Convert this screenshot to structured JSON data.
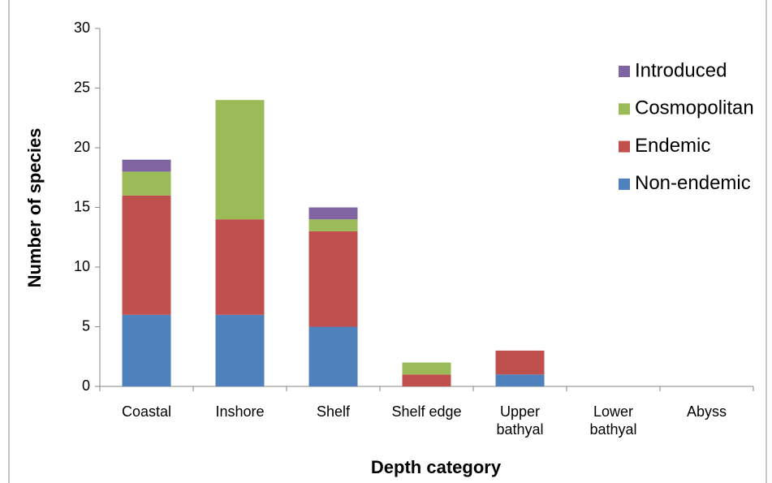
{
  "chart_data": {
    "type": "stacked_bar",
    "categories": [
      "Coastal",
      "Inshore",
      "Shelf",
      "Shelf edge",
      "Upper bathyal",
      "Lower bathyal",
      "Abyss"
    ],
    "series": [
      {
        "name": "Non-endemic",
        "color": "#4f81bd",
        "values": [
          6,
          6,
          5,
          0,
          1,
          0,
          0
        ]
      },
      {
        "name": "Endemic",
        "color": "#c0504d",
        "values": [
          10,
          8,
          8,
          1,
          2,
          0,
          0
        ]
      },
      {
        "name": "Cosmopolitan",
        "color": "#9bbb59",
        "values": [
          2,
          10,
          1,
          1,
          0,
          0,
          0
        ]
      },
      {
        "name": "Introduced",
        "color": "#8064a2",
        "values": [
          1,
          0,
          1,
          0,
          0,
          0,
          0
        ]
      }
    ],
    "x_label": "Depth category",
    "y_label": "Number of species",
    "ylim": [
      0,
      30
    ],
    "yticks": [
      0,
      5,
      10,
      15,
      20,
      25,
      30
    ],
    "legend": "top-right",
    "legend_order": "reversed"
  }
}
